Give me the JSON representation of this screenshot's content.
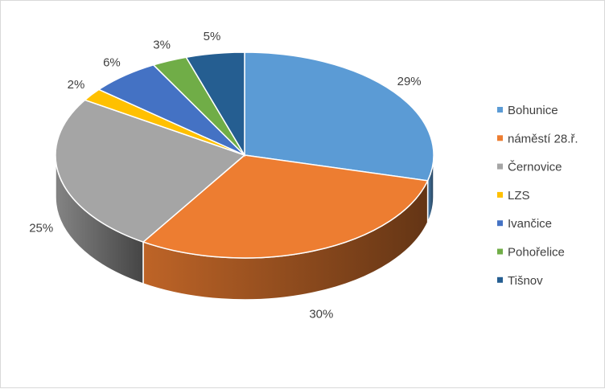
{
  "chart_data": {
    "type": "pie",
    "style": "3d",
    "categories": [
      "Bohunice",
      "náměstí 28.ř.",
      "Černovice",
      "LZS",
      "Ivančice",
      "Pohořelice",
      "Tišnov"
    ],
    "values": [
      29,
      30,
      25,
      2,
      6,
      3,
      5
    ],
    "data_labels": [
      "29%",
      "30%",
      "25%",
      "2%",
      "6%",
      "3%",
      "5%"
    ],
    "colors": [
      "#5b9bd5",
      "#ed7d31",
      "#a5a5a5",
      "#ffc000",
      "#4472c4",
      "#70ad47",
      "#255e91"
    ],
    "legend_position": "right"
  }
}
